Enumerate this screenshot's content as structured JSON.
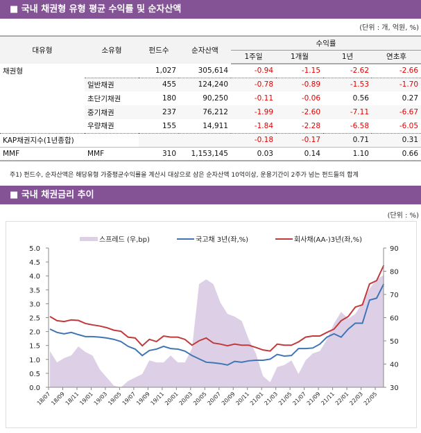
{
  "section1": {
    "title": "■ 국내 채권형 유형 평균 수익률 및 순자산액",
    "unit": "(단위 : 개, 억원, %)",
    "headers": {
      "major": "대유형",
      "minor": "소유형",
      "funds": "펀드수",
      "assets": "순자산액",
      "returns": "수익률",
      "w1": "1주일",
      "m1": "1개월",
      "y1": "1년",
      "ytd": "연초후"
    },
    "rows": [
      {
        "major": "채권형",
        "minor": "",
        "funds": "1,027",
        "assets": "305,614",
        "w1": "-0.94",
        "m1": "-1.15",
        "y1": "-2.62",
        "ytd": "-2.66"
      },
      {
        "major": "",
        "minor": "일반채권",
        "funds": "455",
        "assets": "124,240",
        "w1": "-0.78",
        "m1": "-0.89",
        "y1": "-1.53",
        "ytd": "-1.70"
      },
      {
        "major": "",
        "minor": "초단기채권",
        "funds": "180",
        "assets": "90,250",
        "w1": "-0.11",
        "m1": "-0.06",
        "y1": "0.56",
        "ytd": "0.27"
      },
      {
        "major": "",
        "minor": "중기채권",
        "funds": "237",
        "assets": "76,212",
        "w1": "-1.99",
        "m1": "-2.60",
        "y1": "-7.11",
        "ytd": "-6.67"
      },
      {
        "major": "",
        "minor": "우량채권",
        "funds": "155",
        "assets": "14,911",
        "w1": "-1.84",
        "m1": "-2.28",
        "y1": "-6.58",
        "ytd": "-6.05"
      },
      {
        "major": "KAP채권지수(1년종합)",
        "minor": "",
        "funds": "",
        "assets": "",
        "w1": "-0.18",
        "m1": "-0.17",
        "y1": "0.71",
        "ytd": "0.31"
      },
      {
        "major": "MMF",
        "minor": "MMF",
        "funds": "310",
        "assets": "1,153,145",
        "w1": "0.03",
        "m1": "0.14",
        "y1": "1.10",
        "ytd": "0.66"
      }
    ],
    "footnote": "주1) 펀드수, 순자산액은 해당유형 가중평균수익률을 계산시 대상으로 삼은 순자산액 10억이상, 운용기간이 2주가 넘는 펀드들의 합계"
  },
  "section2": {
    "title": "■ 국내 채권금리 추이",
    "unit": "(단위 : %)"
  },
  "colors": {
    "header": "#845396",
    "negative": "#e00000",
    "spread": "#ddd0e6",
    "gov": "#3f74b5",
    "corp": "#c0393b"
  },
  "chart_data": {
    "type": "line",
    "grid": false,
    "legend_position": "top",
    "x": [
      "2018-07",
      "2018-08",
      "2018-09",
      "2018-10",
      "2018-11",
      "2018-12",
      "2019-01",
      "2019-02",
      "2019-03",
      "2019-04",
      "2019-05",
      "2019-06",
      "2019-07",
      "2019-08",
      "2019-09",
      "2019-10",
      "2019-11",
      "2019-12",
      "2020-01",
      "2020-02",
      "2020-03",
      "2020-04",
      "2020-05",
      "2020-06",
      "2020-07",
      "2020-08",
      "2020-09",
      "2020-10",
      "2020-11",
      "2020-12",
      "2021-01",
      "2021-02",
      "2021-03",
      "2021-04",
      "2021-05",
      "2021-06",
      "2021-07",
      "2021-08",
      "2021-09",
      "2021-10",
      "2021-11",
      "2021-12",
      "2022-01",
      "2022-02",
      "2022-03",
      "2022-04",
      "2022-05",
      "2022-06"
    ],
    "x_tick_labels": [
      "18/07",
      "18/09",
      "18/11",
      "19/01",
      "19/03",
      "19/05",
      "19/07",
      "19/09",
      "19/11",
      "20/01",
      "20/03",
      "20/05",
      "20/07",
      "20/09",
      "20/11",
      "21/01",
      "21/03",
      "21/05",
      "21/07",
      "21/09",
      "21/11",
      "22/01",
      "22/03",
      "22/05"
    ],
    "y_left": {
      "range": [
        0,
        5
      ],
      "ticks": [
        "5.0",
        "4.5",
        "4.0",
        "3.5",
        "3.0",
        "2.5",
        "2.0",
        "1.5",
        "1.0",
        "0.5",
        "0.0"
      ]
    },
    "y_right": {
      "range": [
        30,
        90
      ],
      "ticks": [
        "90",
        "80",
        "70",
        "60",
        "50",
        "40",
        "30"
      ]
    },
    "series": [
      {
        "name": "스프레드 (우,bp)",
        "type": "area",
        "axis": "right",
        "values": [
          45.6,
          40.7,
          42.6,
          43.7,
          47.6,
          45.2,
          43.7,
          37.8,
          34.2,
          30.7,
          30,
          32.7,
          34.2,
          35.7,
          41.6,
          40.7,
          40.7,
          43.7,
          40.7,
          40.7,
          46.7,
          74.5,
          76.5,
          74.5,
          66.5,
          61.6,
          60.5,
          58.6,
          50.6,
          44.6,
          34.8,
          32.2,
          38.7,
          39.6,
          41.6,
          35.7,
          41.6,
          44.6,
          45.6,
          50.6,
          57.5,
          62.5,
          59.6,
          61.6,
          66.5,
          72.5,
          76.5,
          78.4
        ]
      },
      {
        "name": "국고채 3년(좌,%)",
        "type": "line",
        "axis": "left",
        "values": [
          2.09,
          1.97,
          1.92,
          1.97,
          1.89,
          1.82,
          1.82,
          1.8,
          1.77,
          1.72,
          1.64,
          1.47,
          1.37,
          1.14,
          1.32,
          1.37,
          1.47,
          1.39,
          1.37,
          1.3,
          1.14,
          1.02,
          0.9,
          0.88,
          0.85,
          0.8,
          0.93,
          0.9,
          0.95,
          0.97,
          0.97,
          1.01,
          1.18,
          1.12,
          1.14,
          1.39,
          1.39,
          1.41,
          1.55,
          1.8,
          1.92,
          1.8,
          2.09,
          2.3,
          2.3,
          3.13,
          3.2,
          3.71
        ]
      },
      {
        "name": "회사채(AA-)3년(좌,%)",
        "type": "line",
        "axis": "left",
        "values": [
          2.54,
          2.39,
          2.36,
          2.42,
          2.4,
          2.29,
          2.24,
          2.2,
          2.14,
          2.05,
          2.01,
          1.8,
          1.77,
          1.49,
          1.72,
          1.64,
          1.84,
          1.8,
          1.8,
          1.72,
          1.51,
          1.67,
          1.77,
          1.59,
          1.55,
          1.49,
          1.55,
          1.51,
          1.51,
          1.43,
          1.34,
          1.3,
          1.55,
          1.51,
          1.51,
          1.63,
          1.8,
          1.84,
          1.84,
          1.97,
          2.09,
          2.39,
          2.54,
          2.88,
          2.96,
          3.71,
          3.83,
          4.38
        ]
      }
    ]
  }
}
